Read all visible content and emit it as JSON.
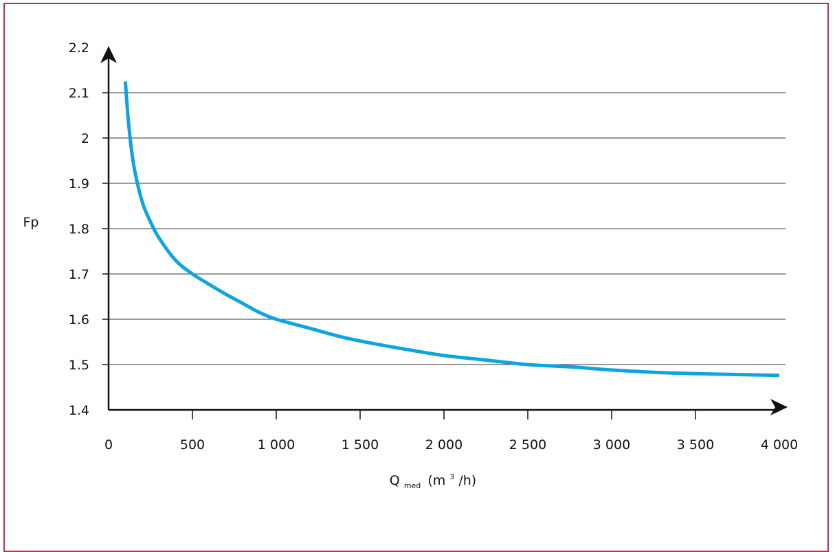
{
  "chart_data": {
    "type": "line",
    "title": "",
    "ylabel": "Fp",
    "xlabel": {
      "main": "Q",
      "subscript": "med",
      "unit_pre": "(m",
      "unit_sup": "3",
      "unit_post": "/h)"
    },
    "xlim": [
      0,
      4000
    ],
    "ylim": [
      1.4,
      2.2
    ],
    "x_ticks": [
      0,
      500,
      1000,
      1500,
      2000,
      2500,
      3000,
      3500,
      4000
    ],
    "x_tick_labels": [
      "0",
      "500",
      "1 000",
      "1 500",
      "2 000",
      "2 500",
      "3 000",
      "3 500",
      "4 000"
    ],
    "y_ticks": [
      1.4,
      1.5,
      1.6,
      1.7,
      1.8,
      1.9,
      2.0,
      2.1,
      2.2
    ],
    "y_tick_labels": [
      "1.4",
      "1.5",
      "1.6",
      "1.7",
      "1.8",
      "1.9",
      "2",
      "2.1",
      "2.2"
    ],
    "grid": "horizontal",
    "series": [
      {
        "color": "#0ea5df",
        "points": [
          [
            100,
            2.125
          ],
          [
            120,
            2.03
          ],
          [
            150,
            1.94
          ],
          [
            200,
            1.86
          ],
          [
            250,
            1.815
          ],
          [
            300,
            1.78
          ],
          [
            400,
            1.73
          ],
          [
            500,
            1.7
          ],
          [
            600,
            1.677
          ],
          [
            700,
            1.655
          ],
          [
            800,
            1.635
          ],
          [
            900,
            1.615
          ],
          [
            1000,
            1.6
          ],
          [
            1200,
            1.58
          ],
          [
            1400,
            1.56
          ],
          [
            1600,
            1.545
          ],
          [
            1800,
            1.532
          ],
          [
            2000,
            1.52
          ],
          [
            2250,
            1.51
          ],
          [
            2500,
            1.5
          ],
          [
            2750,
            1.495
          ],
          [
            3000,
            1.488
          ],
          [
            3250,
            1.483
          ],
          [
            3500,
            1.48
          ],
          [
            3750,
            1.478
          ],
          [
            4000,
            1.476
          ]
        ]
      }
    ]
  }
}
